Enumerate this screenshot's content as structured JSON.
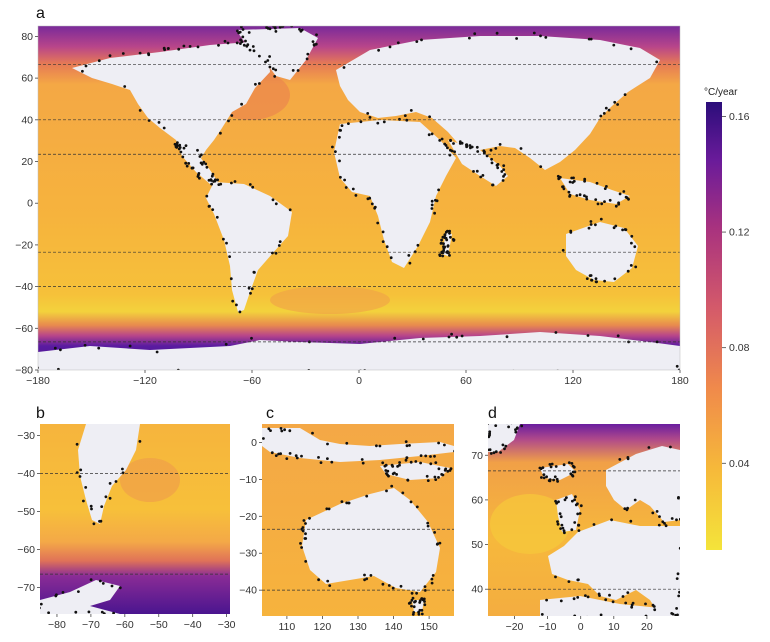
{
  "unit_label": "°C/year",
  "colorbar": {
    "ticks": [
      {
        "value": 0.04,
        "label": "0.04"
      },
      {
        "value": 0.08,
        "label": "0.08"
      },
      {
        "value": 0.12,
        "label": "0.12"
      },
      {
        "value": 0.16,
        "label": "0.16"
      }
    ],
    "range": [
      0.01,
      0.165
    ],
    "colors": [
      "#f4e43a",
      "#f6b93a",
      "#f08a4b",
      "#d45a6a",
      "#a8327f",
      "#6a1b9a",
      "#2b0d7a"
    ]
  },
  "panels": [
    {
      "letter": "a",
      "region": "World",
      "lon_range": [
        -180,
        180
      ],
      "lat_range": [
        -80,
        85
      ],
      "x_ticks": [
        {
          "value": -180,
          "label": "−180"
        },
        {
          "value": -120,
          "label": "−120"
        },
        {
          "value": -60,
          "label": "−60"
        },
        {
          "value": 0,
          "label": "0"
        },
        {
          "value": 60,
          "label": "60"
        },
        {
          "value": 120,
          "label": "120"
        },
        {
          "value": 180,
          "label": "180"
        }
      ],
      "y_ticks": [
        {
          "value": -80,
          "label": "−80"
        },
        {
          "value": -60,
          "label": "−60"
        },
        {
          "value": -40,
          "label": "−40"
        },
        {
          "value": -20,
          "label": "−20"
        },
        {
          "value": 0,
          "label": "0"
        },
        {
          "value": 20,
          "label": "20"
        },
        {
          "value": 40,
          "label": "40"
        },
        {
          "value": 60,
          "label": "60"
        },
        {
          "value": 80,
          "label": "80"
        }
      ],
      "dashed_lats": [
        66.5,
        40,
        23.5,
        -23.5,
        -40,
        -66.5
      ]
    },
    {
      "letter": "b",
      "region": "South America",
      "lon_range": [
        -85,
        -29
      ],
      "lat_range": [
        -77,
        -27
      ],
      "x_ticks": [
        {
          "value": -80,
          "label": "−80"
        },
        {
          "value": -70,
          "label": "−70"
        },
        {
          "value": -60,
          "label": "−60"
        },
        {
          "value": -50,
          "label": "−50"
        },
        {
          "value": -40,
          "label": "−40"
        },
        {
          "value": -30,
          "label": "−30"
        }
      ],
      "y_ticks": [
        {
          "value": -70,
          "label": "−70"
        },
        {
          "value": -60,
          "label": "−60"
        },
        {
          "value": -50,
          "label": "−50"
        },
        {
          "value": -40,
          "label": "−40"
        },
        {
          "value": -30,
          "label": "−30"
        }
      ],
      "dashed_lats": [
        -40,
        -66.5
      ]
    },
    {
      "letter": "c",
      "region": "Australia",
      "lon_range": [
        103,
        157
      ],
      "lat_range": [
        -47,
        5
      ],
      "x_ticks": [
        {
          "value": 110,
          "label": "110"
        },
        {
          "value": 120,
          "label": "120"
        },
        {
          "value": 130,
          "label": "130"
        },
        {
          "value": 140,
          "label": "140"
        },
        {
          "value": 150,
          "label": "150"
        }
      ],
      "y_ticks": [
        {
          "value": -40,
          "label": "−40"
        },
        {
          "value": -30,
          "label": "−30"
        },
        {
          "value": -20,
          "label": "−20"
        },
        {
          "value": -10,
          "label": "−10"
        },
        {
          "value": 0,
          "label": "0"
        }
      ],
      "dashed_lats": [
        -23.5,
        -40
      ]
    },
    {
      "letter": "d",
      "region": "Europe",
      "lon_range": [
        -28,
        30
      ],
      "lat_range": [
        34,
        77
      ],
      "x_ticks": [
        {
          "value": -20,
          "label": "−20"
        },
        {
          "value": -10,
          "label": "−10"
        },
        {
          "value": 0,
          "label": "0"
        },
        {
          "value": 10,
          "label": "10"
        },
        {
          "value": 20,
          "label": "20"
        }
      ],
      "y_ticks": [
        {
          "value": 40,
          "label": "40"
        },
        {
          "value": 50,
          "label": "50"
        },
        {
          "value": 60,
          "label": "60"
        },
        {
          "value": 70,
          "label": "70"
        }
      ],
      "dashed_lats": [
        66.5,
        40
      ]
    }
  ]
}
